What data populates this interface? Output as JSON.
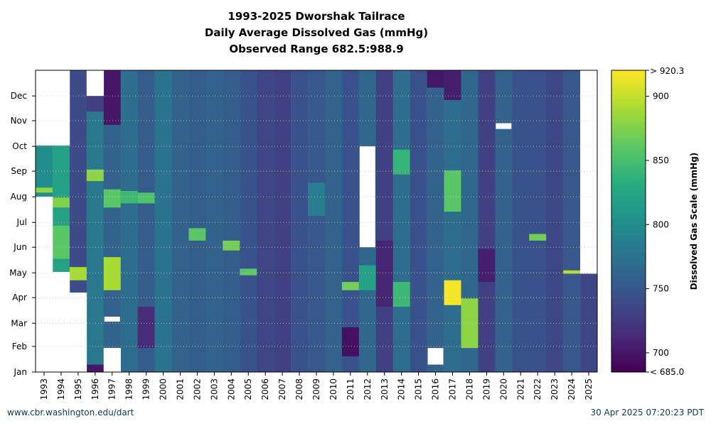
{
  "chart_data": {
    "type": "heatmap",
    "title": [
      "1993-2025 Dworshak Tailrace",
      "Daily Average Dissolved Gas (mmHg)",
      "Observed Range 682.5:988.9"
    ],
    "x": [
      "1993",
      "1994",
      "1995",
      "1996",
      "1997",
      "1998",
      "1999",
      "2000",
      "2001",
      "2002",
      "2003",
      "2004",
      "2005",
      "2006",
      "2007",
      "2008",
      "2009",
      "2010",
      "2011",
      "2012",
      "2013",
      "2014",
      "2015",
      "2016",
      "2017",
      "2018",
      "2019",
      "2020",
      "2021",
      "2022",
      "2023",
      "2024",
      "2025"
    ],
    "y_ticks": [
      "Jan",
      "Feb",
      "Mar",
      "Apr",
      "May",
      "Jun",
      "Jul",
      "Aug",
      "Sep",
      "Oct",
      "Nov",
      "Dec"
    ],
    "y_range": [
      1,
      366
    ],
    "colorbar": {
      "label": "Dissolved Gas Scale (mmHg)",
      "range": [
        685.0,
        920.3
      ],
      "ticks": [
        700,
        750,
        800,
        850,
        900
      ],
      "top_label": "> 920.3",
      "bottom_label": "< 685.0"
    },
    "coverage": [
      {
        "year": "1993",
        "start_day": 213,
        "end_day": 275
      },
      {
        "year": "1994",
        "start_day": 122,
        "end_day": 275
      },
      {
        "year": "1995",
        "start_day": 97,
        "end_day": 366
      },
      {
        "year": "1996",
        "start_day": 1,
        "end_day": 335
      },
      {
        "year": "1997",
        "start_day": 30,
        "end_day": 366
      },
      {
        "year": "1998",
        "start_day": 1,
        "end_day": 366
      },
      {
        "year": "1999",
        "start_day": 1,
        "end_day": 366
      },
      {
        "year": "2000",
        "start_day": 1,
        "end_day": 366
      },
      {
        "year": "2001",
        "start_day": 1,
        "end_day": 366
      },
      {
        "year": "2002",
        "start_day": 1,
        "end_day": 366
      },
      {
        "year": "2003",
        "start_day": 1,
        "end_day": 366
      },
      {
        "year": "2004",
        "start_day": 1,
        "end_day": 366
      },
      {
        "year": "2005",
        "start_day": 1,
        "end_day": 366
      },
      {
        "year": "2006",
        "start_day": 1,
        "end_day": 366
      },
      {
        "year": "2007",
        "start_day": 1,
        "end_day": 366
      },
      {
        "year": "2008",
        "start_day": 1,
        "end_day": 366
      },
      {
        "year": "2009",
        "start_day": 1,
        "end_day": 366
      },
      {
        "year": "2010",
        "start_day": 1,
        "end_day": 366
      },
      {
        "year": "2011",
        "start_day": 1,
        "end_day": 366
      },
      {
        "year": "2012",
        "start_day": 1,
        "end_day": 366
      },
      {
        "year": "2013",
        "start_day": 1,
        "end_day": 366
      },
      {
        "year": "2014",
        "start_day": 1,
        "end_day": 366
      },
      {
        "year": "2015",
        "start_day": 1,
        "end_day": 366
      },
      {
        "year": "2016",
        "start_day": 1,
        "end_day": 366
      },
      {
        "year": "2017",
        "start_day": 1,
        "end_day": 366
      },
      {
        "year": "2018",
        "start_day": 1,
        "end_day": 366
      },
      {
        "year": "2019",
        "start_day": 1,
        "end_day": 366
      },
      {
        "year": "2020",
        "start_day": 1,
        "end_day": 366
      },
      {
        "year": "2021",
        "start_day": 1,
        "end_day": 366
      },
      {
        "year": "2022",
        "start_day": 1,
        "end_day": 366
      },
      {
        "year": "2023",
        "start_day": 1,
        "end_day": 366
      },
      {
        "year": "2024",
        "start_day": 1,
        "end_day": 366
      },
      {
        "year": "2025",
        "start_day": 1,
        "end_day": 120
      }
    ],
    "gaps": [
      {
        "year": "2012",
        "start_day": 152,
        "end_day": 274
      },
      {
        "year": "2016",
        "start_day": 10,
        "end_day": 30
      },
      {
        "year": "2020",
        "start_day": 295,
        "end_day": 302
      },
      {
        "year": "1997",
        "start_day": 62,
        "end_day": 68
      }
    ],
    "segments": [
      {
        "year": "1993",
        "start_day": 213,
        "end_day": 275,
        "value": 800
      },
      {
        "year": "1993",
        "start_day": 218,
        "end_day": 224,
        "value": 880
      },
      {
        "year": "1994",
        "start_day": 122,
        "end_day": 275,
        "value": 820
      },
      {
        "year": "1994",
        "start_day": 138,
        "end_day": 178,
        "value": 860
      },
      {
        "year": "1994",
        "start_day": 200,
        "end_day": 212,
        "value": 875
      },
      {
        "year": "1995",
        "start_day": 97,
        "end_day": 366,
        "value": 740
      },
      {
        "year": "1995",
        "start_day": 112,
        "end_day": 128,
        "value": 890
      },
      {
        "year": "1996",
        "start_day": 1,
        "end_day": 335,
        "value": 780
      },
      {
        "year": "1996",
        "start_day": 232,
        "end_day": 246,
        "value": 880
      },
      {
        "year": "1996",
        "start_day": 316,
        "end_day": 335,
        "value": 730
      },
      {
        "year": "1996",
        "start_day": 1,
        "end_day": 10,
        "value": 700
      },
      {
        "year": "1997",
        "start_day": 30,
        "end_day": 366,
        "value": 760
      },
      {
        "year": "1997",
        "start_day": 100,
        "end_day": 140,
        "value": 890
      },
      {
        "year": "1997",
        "start_day": 200,
        "end_day": 222,
        "value": 860
      },
      {
        "year": "1997",
        "start_day": 300,
        "end_day": 366,
        "value": 700
      },
      {
        "year": "1998",
        "start_day": 1,
        "end_day": 366,
        "value": 770
      },
      {
        "year": "1998",
        "start_day": 205,
        "end_day": 220,
        "value": 845
      },
      {
        "year": "1999",
        "start_day": 1,
        "end_day": 366,
        "value": 755
      },
      {
        "year": "1999",
        "start_day": 30,
        "end_day": 80,
        "value": 715
      },
      {
        "year": "1999",
        "start_day": 205,
        "end_day": 218,
        "value": 855
      },
      {
        "year": "2000",
        "start_day": 1,
        "end_day": 366,
        "value": 775
      },
      {
        "year": "2001",
        "start_day": 1,
        "end_day": 366,
        "value": 760
      },
      {
        "year": "2002",
        "start_day": 1,
        "end_day": 366,
        "value": 755
      },
      {
        "year": "2002",
        "start_day": 160,
        "end_day": 175,
        "value": 860
      },
      {
        "year": "2003",
        "start_day": 1,
        "end_day": 366,
        "value": 760
      },
      {
        "year": "2004",
        "start_day": 1,
        "end_day": 366,
        "value": 755
      },
      {
        "year": "2004",
        "start_day": 148,
        "end_day": 160,
        "value": 870
      },
      {
        "year": "2005",
        "start_day": 1,
        "end_day": 366,
        "value": 745
      },
      {
        "year": "2005",
        "start_day": 118,
        "end_day": 126,
        "value": 860
      },
      {
        "year": "2006",
        "start_day": 1,
        "end_day": 366,
        "value": 735
      },
      {
        "year": "2007",
        "start_day": 1,
        "end_day": 366,
        "value": 730
      },
      {
        "year": "2008",
        "start_day": 1,
        "end_day": 366,
        "value": 745
      },
      {
        "year": "2009",
        "start_day": 1,
        "end_day": 366,
        "value": 750
      },
      {
        "year": "2009",
        "start_day": 190,
        "end_day": 230,
        "value": 785
      },
      {
        "year": "2010",
        "start_day": 1,
        "end_day": 366,
        "value": 760
      },
      {
        "year": "2011",
        "start_day": 1,
        "end_day": 366,
        "value": 745
      },
      {
        "year": "2011",
        "start_day": 20,
        "end_day": 55,
        "value": 695
      },
      {
        "year": "2011",
        "start_day": 100,
        "end_day": 110,
        "value": 870
      },
      {
        "year": "2012",
        "start_day": 1,
        "end_day": 366,
        "value": 765
      },
      {
        "year": "2012",
        "start_day": 100,
        "end_day": 130,
        "value": 820
      },
      {
        "year": "2013",
        "start_day": 1,
        "end_day": 366,
        "value": 730
      },
      {
        "year": "2013",
        "start_day": 80,
        "end_day": 160,
        "value": 710
      },
      {
        "year": "2014",
        "start_day": 1,
        "end_day": 366,
        "value": 770
      },
      {
        "year": "2014",
        "start_day": 80,
        "end_day": 110,
        "value": 845
      },
      {
        "year": "2014",
        "start_day": 240,
        "end_day": 270,
        "value": 840
      },
      {
        "year": "2015",
        "start_day": 1,
        "end_day": 366,
        "value": 745
      },
      {
        "year": "2016",
        "start_day": 1,
        "end_day": 366,
        "value": 760
      },
      {
        "year": "2016",
        "start_day": 345,
        "end_day": 366,
        "value": 700
      },
      {
        "year": "2017",
        "start_day": 1,
        "end_day": 366,
        "value": 770
      },
      {
        "year": "2017",
        "start_day": 82,
        "end_day": 112,
        "value": 918
      },
      {
        "year": "2017",
        "start_day": 195,
        "end_day": 245,
        "value": 860
      },
      {
        "year": "2017",
        "start_day": 330,
        "end_day": 366,
        "value": 705
      },
      {
        "year": "2018",
        "start_day": 1,
        "end_day": 366,
        "value": 765
      },
      {
        "year": "2018",
        "start_day": 30,
        "end_day": 90,
        "value": 880
      },
      {
        "year": "2019",
        "start_day": 1,
        "end_day": 366,
        "value": 730
      },
      {
        "year": "2019",
        "start_day": 110,
        "end_day": 150,
        "value": 705
      },
      {
        "year": "2020",
        "start_day": 1,
        "end_day": 366,
        "value": 760
      },
      {
        "year": "2021",
        "start_day": 1,
        "end_day": 366,
        "value": 745
      },
      {
        "year": "2022",
        "start_day": 1,
        "end_day": 366,
        "value": 745
      },
      {
        "year": "2022",
        "start_day": 160,
        "end_day": 168,
        "value": 870
      },
      {
        "year": "2023",
        "start_day": 1,
        "end_day": 366,
        "value": 735
      },
      {
        "year": "2024",
        "start_day": 1,
        "end_day": 366,
        "value": 750
      },
      {
        "year": "2024",
        "start_day": 120,
        "end_day": 124,
        "value": 895
      },
      {
        "year": "2025",
        "start_day": 1,
        "end_day": 120,
        "value": 735
      }
    ]
  },
  "footer": {
    "source": "www.cbr.washington.edu/dart",
    "timestamp": "30 Apr 2025 07:20:23 PDT"
  }
}
